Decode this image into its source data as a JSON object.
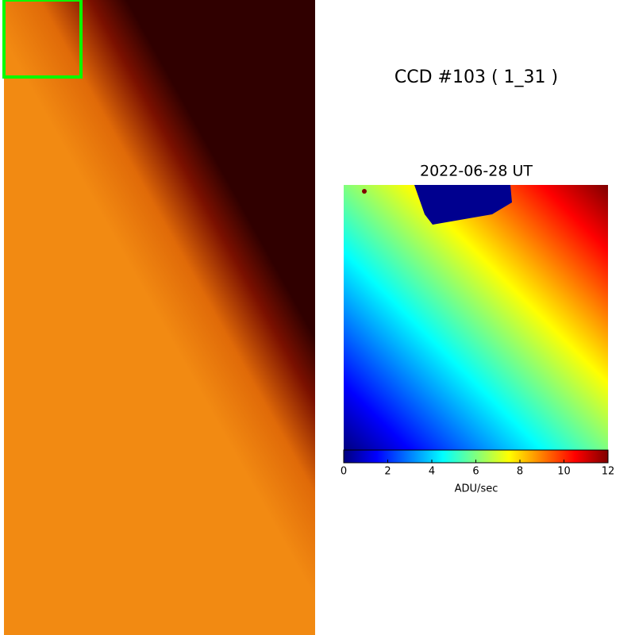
{
  "chart_data": {
    "type": "heatmap",
    "title": "CCD #103 ( 1_31 )",
    "subtitle": "2022-06-28 UT",
    "colorbar_label": "ADU/sec",
    "colormap": "jet",
    "clim": [
      0,
      12
    ],
    "cticks": [
      0,
      2,
      4,
      6,
      8,
      10,
      12
    ]
  }
}
